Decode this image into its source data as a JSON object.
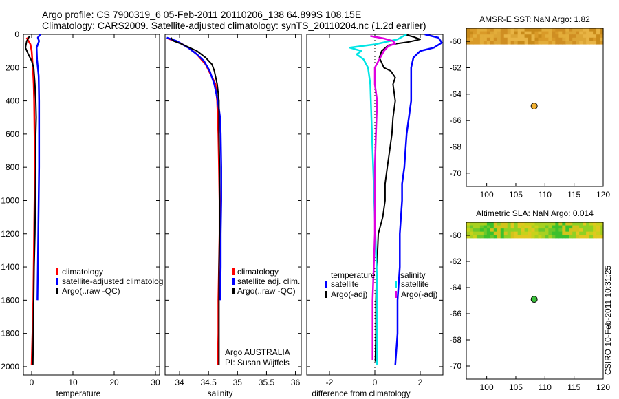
{
  "figure": {
    "title_line1": "Argo profile: CS 7900319_6 05-Feb-2011 20110206_138 64.899S 108.15E",
    "title_line2": "Climatology: CARS2009. Satellite-adjusted climatology: synTS_20110204.nc (1.2d earlier)",
    "side_stamp": "CSIRO 10-Feb-2011 10:31:25"
  },
  "colors": {
    "climatology": "#ff0000",
    "satellite": "#0000ff",
    "argo": "#000000",
    "salinity_satellite": "#00e5e5",
    "salinity_argo": "#e000e0"
  },
  "chart_data": [
    {
      "id": "temperature",
      "type": "line",
      "xlabel": "temperature",
      "ylabel": "",
      "xlim": [
        -2,
        31
      ],
      "ylim": [
        2050,
        0
      ],
      "xticks": [
        0,
        10,
        20,
        30
      ],
      "yticks": [
        0,
        200,
        400,
        600,
        800,
        1000,
        1200,
        1400,
        1600,
        1800,
        2000
      ],
      "legend": {
        "placement": "lower-left",
        "entries": [
          {
            "label": "climatology",
            "color": "#ff0000"
          },
          {
            "label": "satellite-adjusted climatolog",
            "color": "#0000ff"
          },
          {
            "label": "Argo(..raw -QC)",
            "color": "#000000"
          }
        ]
      },
      "series": [
        {
          "name": "climatology",
          "color": "#ff0000",
          "width": 2.5,
          "points": [
            [
              -1.2,
              20
            ],
            [
              -0.3,
              60
            ],
            [
              0.0,
              100
            ],
            [
              0.3,
              200
            ],
            [
              0.5,
              300
            ],
            [
              0.6,
              400
            ],
            [
              0.7,
              600
            ],
            [
              0.8,
              800
            ],
            [
              0.7,
              1000
            ],
            [
              0.6,
              1200
            ],
            [
              0.5,
              1400
            ],
            [
              0.4,
              1600
            ],
            [
              0.2,
              1800
            ],
            [
              0.0,
              1990
            ]
          ]
        },
        {
          "name": "satellite-adjusted climatology",
          "color": "#0000ff",
          "width": 2.5,
          "points": [
            [
              2.1,
              0
            ],
            [
              1.5,
              20
            ],
            [
              1.8,
              40
            ],
            [
              1.2,
              80
            ],
            [
              1.3,
              150
            ],
            [
              1.7,
              250
            ],
            [
              1.8,
              400
            ],
            [
              1.8,
              600
            ],
            [
              1.8,
              800
            ],
            [
              1.7,
              1000
            ],
            [
              1.6,
              1200
            ],
            [
              1.5,
              1400
            ],
            [
              1.4,
              1600
            ]
          ]
        },
        {
          "name": "Argo",
          "color": "#000000",
          "width": 2,
          "points": [
            [
              -0.5,
              10
            ],
            [
              -1.2,
              40
            ],
            [
              -1.5,
              80
            ],
            [
              -0.8,
              120
            ],
            [
              0.0,
              160
            ],
            [
              0.5,
              200
            ],
            [
              0.8,
              300
            ],
            [
              1.0,
              400
            ],
            [
              1.1,
              500
            ],
            [
              1.0,
              600
            ],
            [
              1.0,
              800
            ],
            [
              0.9,
              1000
            ],
            [
              0.8,
              1200
            ],
            [
              0.6,
              1400
            ],
            [
              0.5,
              1600
            ],
            [
              0.4,
              1800
            ],
            [
              0.3,
              1990
            ]
          ]
        }
      ]
    },
    {
      "id": "salinity",
      "type": "line",
      "xlabel": "salinity",
      "ylabel": "",
      "xlim": [
        33.75,
        36.1
      ],
      "ylim": [
        2050,
        0
      ],
      "xticks": [
        34,
        34.5,
        35,
        35.5,
        36
      ],
      "xtick_labels": [
        "34",
        "34.5",
        "35",
        "35.5",
        "36"
      ],
      "legend": {
        "placement": "lower-right",
        "entries": [
          {
            "label": "climatology",
            "color": "#ff0000"
          },
          {
            "label": "satellite adj. clim.",
            "color": "#0000ff"
          },
          {
            "label": "Argo(..raw -QC)",
            "color": "#000000"
          }
        ]
      },
      "annotations": [
        "Argo AUSTRALIA",
        "PI: Susan Wijffels"
      ],
      "series": [
        {
          "name": "climatology",
          "color": "#ff0000",
          "width": 2.5,
          "points": [
            [
              33.8,
              25
            ],
            [
              34.0,
              50
            ],
            [
              34.15,
              80
            ],
            [
              34.3,
              120
            ],
            [
              34.45,
              180
            ],
            [
              34.55,
              250
            ],
            [
              34.62,
              300
            ],
            [
              34.65,
              400
            ],
            [
              34.67,
              600
            ],
            [
              34.68,
              800
            ],
            [
              34.69,
              1000
            ],
            [
              34.69,
              1200
            ],
            [
              34.68,
              1400
            ],
            [
              34.67,
              1600
            ],
            [
              34.67,
              1800
            ],
            [
              34.66,
              1990
            ]
          ]
        },
        {
          "name": "satellite adj. clim.",
          "color": "#0000ff",
          "width": 2.5,
          "points": [
            [
              33.78,
              20
            ],
            [
              33.95,
              40
            ],
            [
              34.15,
              80
            ],
            [
              34.3,
              120
            ],
            [
              34.42,
              160
            ],
            [
              34.52,
              220
            ],
            [
              34.6,
              300
            ],
            [
              34.66,
              400
            ],
            [
              34.7,
              500
            ],
            [
              34.71,
              600
            ],
            [
              34.72,
              800
            ],
            [
              34.72,
              1000
            ],
            [
              34.71,
              1200
            ],
            [
              34.71,
              1400
            ],
            [
              34.7,
              1600
            ]
          ]
        },
        {
          "name": "Argo",
          "color": "#000000",
          "width": 2,
          "points": [
            [
              33.85,
              20
            ],
            [
              33.9,
              40
            ],
            [
              34.05,
              60
            ],
            [
              34.3,
              100
            ],
            [
              34.45,
              140
            ],
            [
              34.56,
              180
            ],
            [
              34.6,
              220
            ],
            [
              34.65,
              300
            ],
            [
              34.68,
              400
            ],
            [
              34.68,
              600
            ],
            [
              34.69,
              800
            ],
            [
              34.69,
              1000
            ],
            [
              34.69,
              1200
            ],
            [
              34.68,
              1400
            ],
            [
              34.68,
              1600
            ],
            [
              34.68,
              1800
            ],
            [
              34.68,
              1990
            ]
          ]
        }
      ]
    },
    {
      "id": "difference",
      "type": "line",
      "xlabel": "difference from climatology",
      "ylabel": "",
      "xlim": [
        -3,
        3
      ],
      "ylim": [
        2050,
        0
      ],
      "xticks": [
        -2,
        0,
        2
      ],
      "zero_line": true,
      "legend": {
        "placement": "lower-center",
        "headers": [
          "temperature",
          "salinity"
        ],
        "entries": [
          {
            "label": "satellite",
            "color": "#0000ff"
          },
          {
            "label": "Argo(-adj)",
            "color": "#000000"
          },
          {
            "label": "satellite",
            "color": "#00e5e5"
          },
          {
            "label": "Argo(-adj)",
            "color": "#e000e0"
          }
        ]
      },
      "series": [
        {
          "name": "temperature satellite",
          "color": "#0000ff",
          "width": 2.5,
          "points": [
            [
              2.2,
              0
            ],
            [
              2.8,
              20
            ],
            [
              2.95,
              50
            ],
            [
              2.6,
              80
            ],
            [
              2.0,
              100
            ],
            [
              1.7,
              140
            ],
            [
              1.6,
              200
            ],
            [
              1.6,
              300
            ],
            [
              1.6,
              400
            ],
            [
              1.5,
              500
            ],
            [
              1.4,
              600
            ],
            [
              1.35,
              700
            ],
            [
              1.3,
              800
            ],
            [
              1.2,
              900
            ],
            [
              1.2,
              1000
            ],
            [
              1.1,
              1200
            ],
            [
              1.1,
              1400
            ],
            [
              1.0,
              1600
            ],
            [
              1.0,
              1800
            ],
            [
              0.9,
              1990
            ]
          ]
        },
        {
          "name": "temperature Argo",
          "color": "#000000",
          "width": 2,
          "points": [
            [
              1.3,
              0
            ],
            [
              1.7,
              15
            ],
            [
              2.0,
              30
            ],
            [
              1.5,
              45
            ],
            [
              1.0,
              55
            ],
            [
              0.6,
              65
            ],
            [
              0.3,
              100
            ],
            [
              0.2,
              140
            ],
            [
              0.4,
              200
            ],
            [
              0.7,
              220
            ],
            [
              0.9,
              260
            ],
            [
              0.8,
              300
            ],
            [
              0.9,
              400
            ],
            [
              0.8,
              500
            ],
            [
              0.75,
              600
            ],
            [
              0.65,
              700
            ],
            [
              0.55,
              800
            ],
            [
              0.45,
              900
            ],
            [
              0.45,
              1000
            ],
            [
              0.35,
              1100
            ],
            [
              0.15,
              1200
            ],
            [
              0.12,
              1300
            ],
            [
              0.08,
              1400
            ],
            [
              0.05,
              1600
            ],
            [
              0.05,
              1800
            ],
            [
              0.02,
              1970
            ]
          ]
        },
        {
          "name": "salinity satellite",
          "color": "#00e5e5",
          "width": 2.5,
          "points": [
            [
              1.4,
              0
            ],
            [
              1.0,
              30
            ],
            [
              0.0,
              60
            ],
            [
              -1.1,
              80
            ],
            [
              -0.6,
              100
            ],
            [
              -0.8,
              120
            ],
            [
              -0.5,
              150
            ],
            [
              -0.3,
              200
            ],
            [
              -0.2,
              300
            ],
            [
              -0.15,
              500
            ],
            [
              -0.1,
              700
            ],
            [
              -0.05,
              900
            ],
            [
              0.0,
              1100
            ],
            [
              0.05,
              1300
            ],
            [
              0.1,
              1500
            ],
            [
              0.1,
              1700
            ],
            [
              0.1,
              1990
            ]
          ]
        },
        {
          "name": "salinity Argo",
          "color": "#e000e0",
          "width": 2.5,
          "points": [
            [
              -0.2,
              10
            ],
            [
              0.4,
              25
            ],
            [
              0.8,
              40
            ],
            [
              0.9,
              55
            ],
            [
              0.6,
              70
            ],
            [
              0.4,
              100
            ],
            [
              0.2,
              150
            ],
            [
              0.0,
              200
            ],
            [
              0.0,
              300
            ],
            [
              0.1,
              400
            ],
            [
              0.05,
              600
            ],
            [
              0.0,
              800
            ],
            [
              0.0,
              1000
            ],
            [
              0.0,
              1200
            ],
            [
              -0.05,
              1400
            ],
            [
              -0.1,
              1600
            ],
            [
              -0.1,
              1800
            ],
            [
              -0.1,
              1960
            ]
          ]
        }
      ]
    },
    {
      "id": "amsr-sst-map",
      "type": "heatmap",
      "title": "AMSR-E SST: NaN Argo: 1.82",
      "xlim": [
        96.5,
        120
      ],
      "ylim": [
        -71,
        -59
      ],
      "xticks": [
        100,
        105,
        110,
        115,
        120
      ],
      "yticks": [
        -60,
        -62,
        -64,
        -66,
        -68,
        -70
      ],
      "data_band_lat": [
        -59,
        -60.2
      ],
      "palette": [
        "#c88a1a",
        "#d99a28",
        "#e3ad3a",
        "#cf8e22",
        "#dca535",
        "#e8b445"
      ],
      "marker": {
        "lon": 108.15,
        "lat": -64.9,
        "color": "#f2b233"
      }
    },
    {
      "id": "altimetric-sla-map",
      "type": "heatmap",
      "title": "Altimetric SLA: NaN Argo: 0.014",
      "xlim": [
        96.5,
        120
      ],
      "ylim": [
        -71,
        -59
      ],
      "xticks": [
        100,
        105,
        110,
        115,
        120
      ],
      "yticks": [
        -60,
        -62,
        -64,
        -66,
        -68,
        -70
      ],
      "data_band_lat": [
        -59,
        -60.2
      ],
      "palette": [
        "#c8d21a",
        "#a8d020",
        "#6cc82a",
        "#3cc02c",
        "#d2c41c",
        "#8fd024",
        "#e0c820"
      ],
      "marker": {
        "lon": 108.15,
        "lat": -64.9,
        "color": "#3cc03c"
      }
    }
  ]
}
